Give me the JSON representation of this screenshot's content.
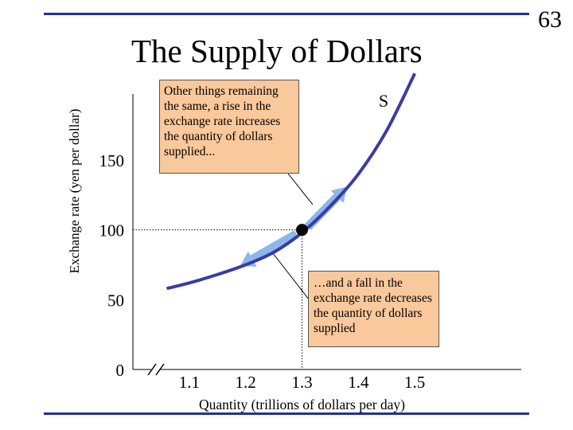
{
  "slide": {
    "title": "The Supply of Dollars",
    "page_number": "63",
    "accent_color": "#2b2b9a",
    "curve_color": "#3a3aa8",
    "arrow_color": "#8ab8ea",
    "callout_color": "#f9c89b",
    "callouts": {
      "up": "Other things remaining the same, a rise in the exchange rate increases the quantity of dollars supplied...",
      "down": "…and a fall in the exchange rate decreases the quantity of dollars supplied"
    }
  },
  "chart_data": {
    "type": "line",
    "title": "The Supply of Dollars",
    "xlabel": "Quantity (trillions of dollars per day)",
    "ylabel": "Exchange rate (yen per dollar)",
    "x_ticks": [
      "1.1",
      "1.2",
      "1.3",
      "1.4",
      "1.5"
    ],
    "y_ticks": [
      "0",
      "50",
      "100",
      "150"
    ],
    "origin_label": "0",
    "axis_break": true,
    "grid": false,
    "series": [
      {
        "name": "S",
        "x": [
          1.06,
          1.1,
          1.15,
          1.2,
          1.25,
          1.3,
          1.35,
          1.4,
          1.45,
          1.5
        ],
        "y": [
          58,
          62,
          68,
          75,
          84,
          98,
          117,
          140,
          171,
          212
        ]
      }
    ],
    "highlight_point": {
      "x": 1.3,
      "y": 100
    },
    "arrows": [
      {
        "from": {
          "x": 1.31,
          "y": 102
        },
        "to": {
          "x": 1.38,
          "y": 131
        }
      },
      {
        "from": {
          "x": 1.29,
          "y": 97
        },
        "to": {
          "x": 1.19,
          "y": 74
        }
      }
    ]
  }
}
